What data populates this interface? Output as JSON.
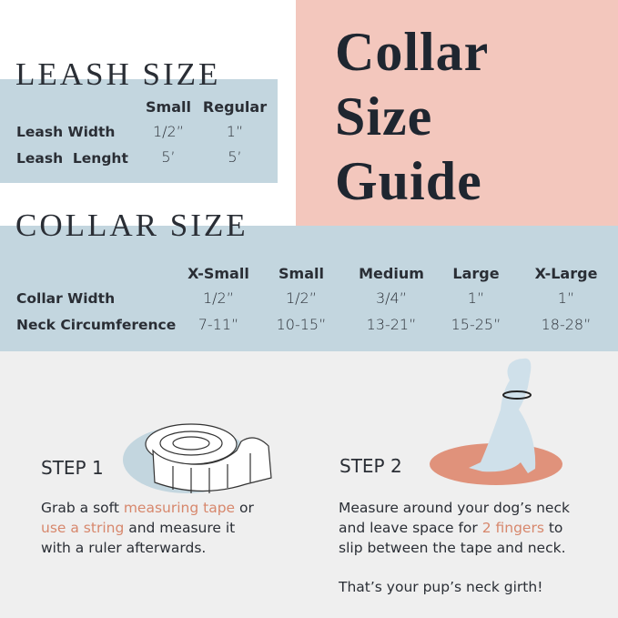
{
  "title_lines": [
    "Collar",
    "Size",
    "Guide"
  ],
  "leash": {
    "heading": "LEASH SIZE",
    "columns": [
      "Small",
      "Regular"
    ],
    "rows": [
      {
        "label": "Leash Width",
        "values": [
          "1/2”",
          "1”"
        ]
      },
      {
        "label": "Leash  Lenght",
        "values": [
          "5’",
          "5’"
        ]
      }
    ]
  },
  "collar": {
    "heading": "COLLAR SIZE",
    "columns": [
      "X-Small",
      "Small",
      "Medium",
      "Large",
      "X-Large"
    ],
    "rows": [
      {
        "label": "Collar Width",
        "values": [
          "1/2”",
          "1/2”",
          "3/4”",
          "1”",
          "1”"
        ]
      },
      {
        "label": "Neck Circumference",
        "values": [
          "7-11”",
          "10-15”",
          "13-21”",
          "15-25”",
          "18-28”"
        ]
      }
    ]
  },
  "step1": {
    "heading": "STEP 1",
    "t1": "Grab a soft ",
    "h1": "measuring tape",
    "t2": " or",
    "h2": "use a string",
    "t3": " and measure it",
    "t4": "with a ruler afterwards."
  },
  "step2": {
    "heading": "STEP 2",
    "t1": "Measure around your dog’s neck",
    "t2": "and leave space for ",
    "h1": "2 fingers",
    "t3": " to",
    "t4": "slip between the tape and neck.",
    "closing": "That’s your pup’s neck girth!"
  },
  "icons": [
    "measuring-tape-icon",
    "sitting-dog-icon"
  ],
  "colors": {
    "blue": "#c3d6df",
    "pink": "#f3c7bd",
    "gray": "#efefef",
    "accent": "#d7876c"
  }
}
